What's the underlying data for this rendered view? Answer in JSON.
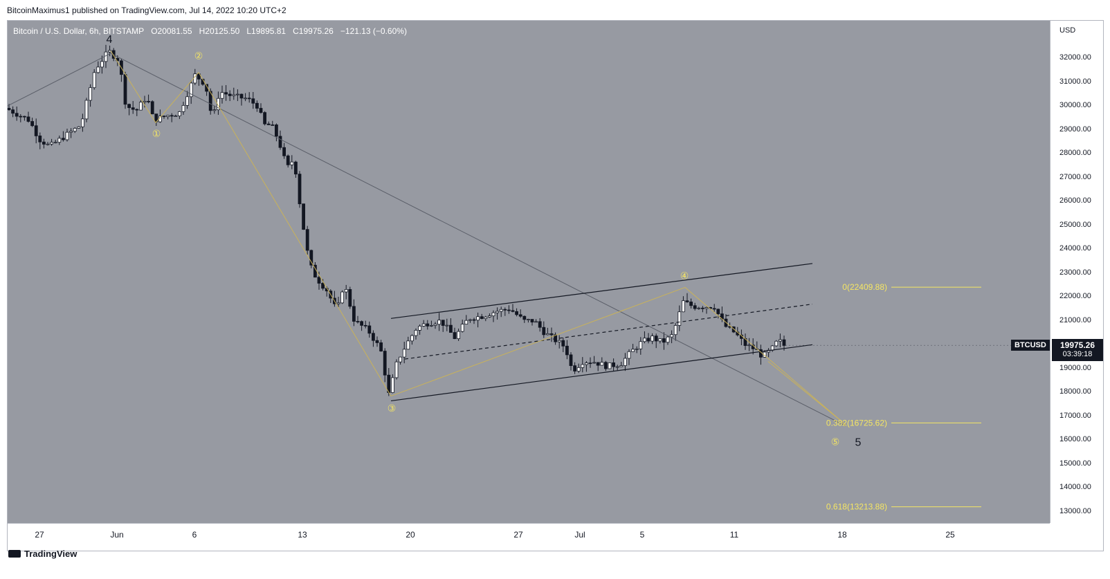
{
  "header": {
    "publisher": "BitcoinMaximus1 published on TradingView.com, Jul 14, 2022 10:20 UTC+2"
  },
  "legend": {
    "symbol": "Bitcoin / U.S. Dollar, 6h, BITSTAMP",
    "o_label": "O",
    "o_value": "20081.55",
    "h_label": "H",
    "h_value": "20125.50",
    "l_label": "L",
    "l_value": "19895.81",
    "c_label": "C",
    "c_value": "19975.26",
    "change": "−121.13 (−0.60%)"
  },
  "price_axis": {
    "currency": "USD",
    "ticks": [
      "32000.00",
      "31000.00",
      "30000.00",
      "29000.00",
      "28000.00",
      "27000.00",
      "26000.00",
      "25000.00",
      "24000.00",
      "23000.00",
      "22000.00",
      "21000.00",
      "20000.00",
      "19000.00",
      "18000.00",
      "17000.00",
      "16000.00",
      "15000.00",
      "14000.00",
      "13000.00"
    ]
  },
  "time_axis": {
    "ticks": [
      "27",
      "Jun",
      "6",
      "13",
      "20",
      "27",
      "Jul",
      "5",
      "11",
      "18",
      "25"
    ]
  },
  "last_price": {
    "symbol": "BTCUSD",
    "price": "19975.26",
    "countdown": "03:39:18"
  },
  "fib": [
    {
      "label": "0(22409.88)",
      "ratio": 0,
      "price": 22409.88
    },
    {
      "label": "0.382(16725.62)",
      "ratio": 0.382,
      "price": 16725.62
    },
    {
      "label": "0.618(13213.88)",
      "ratio": 0.618,
      "price": 13213.88
    }
  ],
  "wave_labels": {
    "big_4": "4",
    "big_5": "5",
    "sub": [
      "①",
      "②",
      "③",
      "④",
      "⑤"
    ]
  },
  "colors": {
    "plot_bg": "#979aa2",
    "fib": "#f5e663",
    "up_candle": "#ffffff",
    "down_candle": "#131722",
    "trend": "#5a5e68",
    "wave": "#c9b25a"
  },
  "footer": {
    "brand": "TradingView"
  },
  "chart_data": {
    "type": "candlestick",
    "title": "Bitcoin / U.S. Dollar, 6h, BITSTAMP",
    "ylabel": "USD",
    "ylim": [
      12500,
      33200
    ],
    "x_tick_labels": [
      "27",
      "Jun",
      "6",
      "13",
      "20",
      "27",
      "Jul",
      "5",
      "11",
      "18",
      "25"
    ],
    "wave_points_price": [
      {
        "label": "4",
        "price": 32300
      },
      {
        "label": "①",
        "price": 29300
      },
      {
        "label": "②",
        "price": 31300
      },
      {
        "label": "③",
        "price": 17700
      },
      {
        "label": "④",
        "price": 22400
      },
      {
        "label": "⑤",
        "price": 16725
      }
    ],
    "channel_upper": [
      [
        21100
      ],
      [
        23400
      ]
    ],
    "channel_lower": [
      [
        17600
      ],
      [
        20000
      ]
    ],
    "fib_levels": [
      22409.88,
      16725.62,
      13213.88
    ],
    "last_close": 19975.26
  }
}
